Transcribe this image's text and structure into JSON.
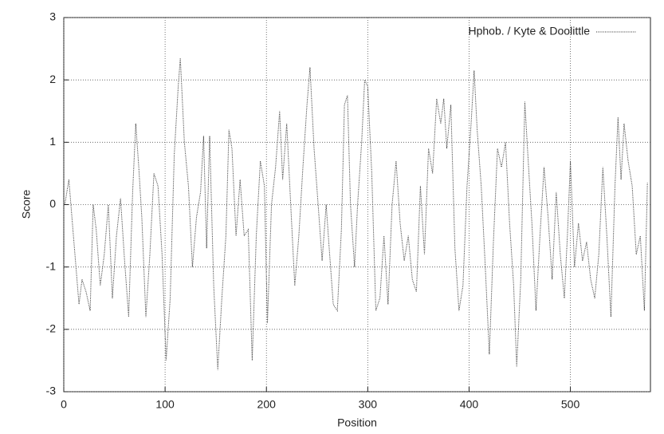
{
  "chart_data": {
    "type": "line",
    "xlabel": "Position",
    "ylabel": "Score",
    "x": [
      1,
      5,
      8,
      12,
      15,
      18,
      22,
      26,
      29,
      32,
      36,
      40,
      44,
      48,
      52,
      56,
      60,
      64,
      68,
      71,
      74,
      77,
      81,
      85,
      89,
      93,
      97,
      101,
      105,
      109,
      113,
      115,
      119,
      123,
      127,
      131,
      135,
      138,
      141,
      144,
      148,
      152,
      156,
      160,
      163,
      166,
      170,
      174,
      178,
      182,
      186,
      190,
      194,
      198,
      201,
      205,
      209,
      213,
      216,
      220,
      224,
      228,
      232,
      236,
      240,
      243,
      247,
      251,
      255,
      259,
      262,
      266,
      270,
      274,
      277,
      280,
      283,
      287,
      290,
      294,
      297,
      300,
      304,
      308,
      312,
      316,
      320,
      324,
      328,
      332,
      336,
      340,
      344,
      348,
      352,
      356,
      360,
      364,
      368,
      372,
      375,
      378,
      382,
      386,
      390,
      394,
      398,
      402,
      405,
      408,
      412,
      416,
      420,
      424,
      428,
      432,
      436,
      440,
      444,
      447,
      451,
      455,
      458,
      462,
      466,
      470,
      474,
      478,
      482,
      486,
      490,
      494,
      497,
      500,
      504,
      508,
      512,
      516,
      520,
      524,
      528,
      532,
      536,
      540,
      544,
      547,
      550,
      553,
      557,
      561,
      565,
      569,
      573,
      576
    ],
    "series": [
      {
        "name": "Hphob. / Kyte & Doolittle",
        "color": "#333333",
        "values": [
          0.0,
          0.4,
          -0.2,
          -1.0,
          -1.6,
          -1.2,
          -1.4,
          -1.7,
          0.0,
          -0.4,
          -1.3,
          -0.8,
          0.0,
          -1.5,
          -0.5,
          0.1,
          -0.9,
          -1.8,
          0.2,
          1.3,
          0.6,
          -0.2,
          -1.8,
          -0.8,
          0.5,
          0.3,
          -0.8,
          -2.5,
          -1.5,
          0.8,
          1.9,
          2.35,
          1.0,
          0.3,
          -1.0,
          -0.2,
          0.2,
          1.1,
          -0.7,
          1.1,
          -1.3,
          -2.65,
          -1.5,
          -0.5,
          1.2,
          0.9,
          -0.5,
          0.4,
          -0.5,
          -0.4,
          -2.5,
          -0.5,
          0.7,
          0.3,
          -1.9,
          0.0,
          0.6,
          1.5,
          0.4,
          1.3,
          0.0,
          -1.3,
          -0.5,
          0.6,
          1.6,
          2.2,
          0.9,
          0.0,
          -0.9,
          0.0,
          -0.7,
          -1.6,
          -1.7,
          -0.4,
          1.6,
          1.75,
          0.0,
          -1.0,
          0.0,
          1.0,
          2.0,
          1.9,
          0.5,
          -1.7,
          -1.5,
          -0.5,
          -1.6,
          0.0,
          0.7,
          -0.3,
          -0.9,
          -0.5,
          -1.2,
          -1.4,
          0.3,
          -0.8,
          0.9,
          0.5,
          1.7,
          1.3,
          1.7,
          0.9,
          1.6,
          -0.7,
          -1.7,
          -1.3,
          0.3,
          1.3,
          2.15,
          1.2,
          0.3,
          -1.0,
          -2.4,
          -0.6,
          0.9,
          0.6,
          1.0,
          -0.3,
          -1.3,
          -2.6,
          -1.2,
          1.65,
          0.8,
          -0.3,
          -1.7,
          -0.5,
          0.6,
          -0.2,
          -1.2,
          0.2,
          -0.8,
          -1.5,
          -0.5,
          0.7,
          -1.0,
          -0.3,
          -0.9,
          -0.6,
          -1.2,
          -1.5,
          -0.8,
          0.6,
          -0.5,
          -1.8,
          0.3,
          1.4,
          0.4,
          1.3,
          0.7,
          0.3,
          -0.8,
          -0.5,
          -1.7,
          0.35
        ]
      }
    ],
    "xlim": [
      0,
      579
    ],
    "xticks": [
      0,
      100,
      200,
      300,
      400,
      500
    ],
    "ylim": [
      -3,
      3
    ],
    "yticks": [
      -3,
      -2,
      -1,
      0,
      1,
      2,
      3
    ],
    "grid": true,
    "legend": "upper right"
  }
}
